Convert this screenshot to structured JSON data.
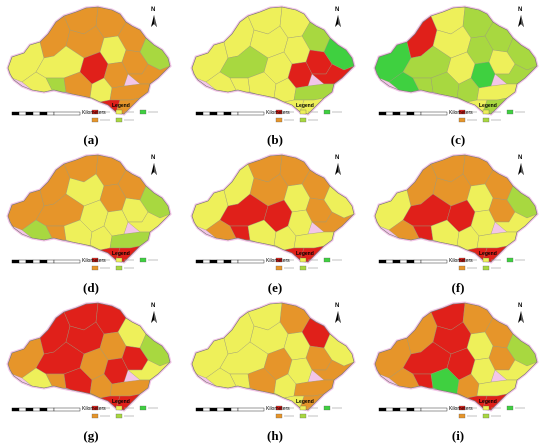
{
  "legend_title": "Legend",
  "scale_unit": "Kilometers",
  "north_symbol": "N",
  "class_colors": {
    "very_low": "#3fd040",
    "low": "#a8d840",
    "medium": "#eef05a",
    "high": "#e6952a",
    "very_high": "#e0201a"
  },
  "panels": [
    {
      "id": "a",
      "label": "(a)",
      "dominant_class": "high"
    },
    {
      "id": "b",
      "label": "(b)",
      "dominant_class": "medium"
    },
    {
      "id": "c",
      "label": "(c)",
      "dominant_class": "low"
    },
    {
      "id": "d",
      "label": "(d)",
      "dominant_class": "high"
    },
    {
      "id": "e",
      "label": "(e)",
      "dominant_class": "high"
    },
    {
      "id": "f",
      "label": "(f)",
      "dominant_class": "high"
    },
    {
      "id": "g",
      "label": "(g)",
      "dominant_class": "very_high"
    },
    {
      "id": "h",
      "label": "(h)",
      "dominant_class": "medium"
    },
    {
      "id": "i",
      "label": "(i)",
      "dominant_class": "high"
    }
  ]
}
